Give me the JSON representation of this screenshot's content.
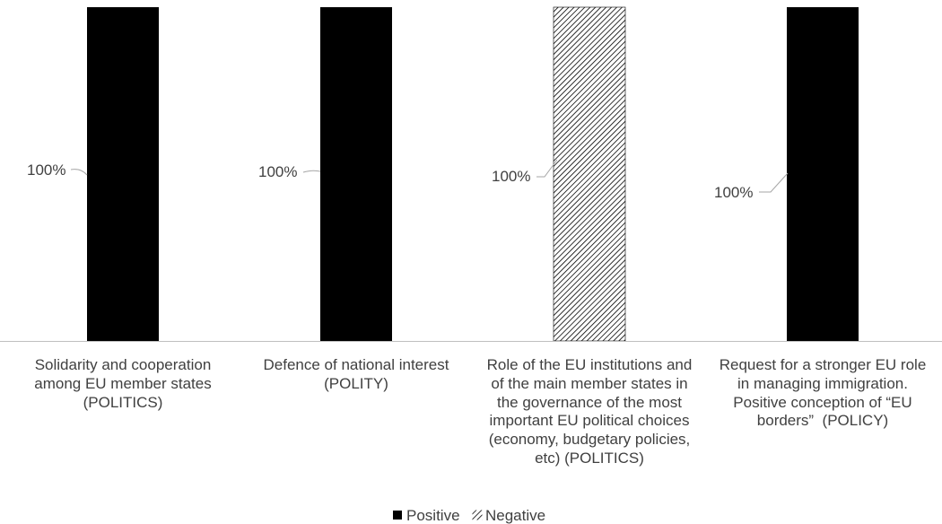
{
  "chart_data": {
    "type": "bar",
    "categories": [
      "Solidarity and cooperation\namong EU member states\n(POLITICS)",
      "Defence of national interest\n(POLITY)",
      "Role of the EU institutions and\nof the main member states in\nthe governance of the most\nimportant EU political choices\n(economy, budgetary policies,\netc) (POLITICS)",
      "Request for a stronger EU role\nin managing immigration.\nPositive conception of “EU\nborders”  (POLICY)"
    ],
    "series": [
      {
        "name": "Positive",
        "values": [
          100,
          100,
          null,
          100
        ]
      },
      {
        "name": "Negative",
        "values": [
          null,
          null,
          100,
          null
        ]
      }
    ],
    "data_labels": [
      "100%",
      "100%",
      "100%",
      "100%"
    ],
    "ylim": [
      0,
      100
    ],
    "grid": false,
    "legend": "bottom",
    "colors": {
      "Positive": "#000000",
      "Negative": "#000000",
      "text": "#404040",
      "axis": "#bfbfbf"
    },
    "patterns": {
      "Positive": "solid",
      "Negative": "diagonal-hatch"
    }
  }
}
